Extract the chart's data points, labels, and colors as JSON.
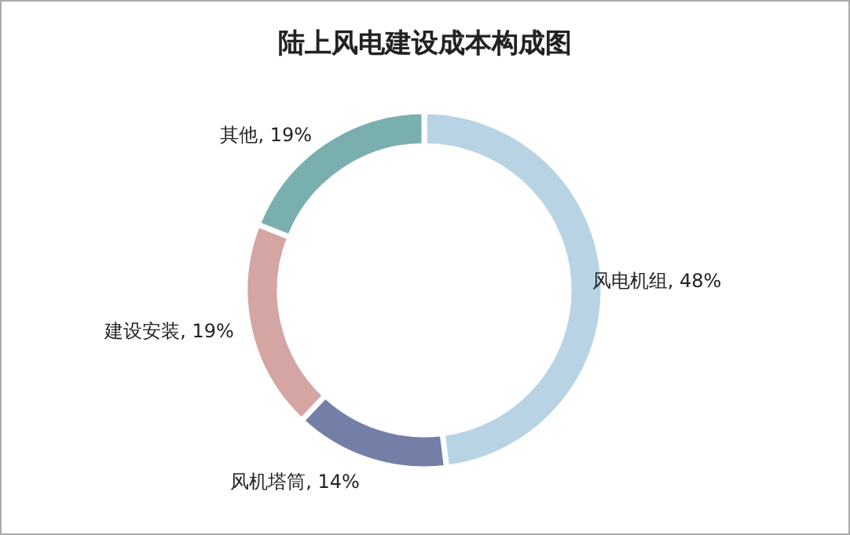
{
  "chart_data": {
    "type": "donut",
    "title": "陆上风电建设成本构成图",
    "categories": [
      "风电机组",
      "风机塔筒",
      "建设安装",
      "其他"
    ],
    "values": [
      48,
      14,
      19,
      19
    ],
    "value_labels": [
      ", 48%",
      ", 14%",
      ", 19%",
      ", 19%"
    ],
    "colors": [
      "#b8d4e4",
      "#737fa6",
      "#d4a5a2",
      "#7aafb0"
    ]
  }
}
